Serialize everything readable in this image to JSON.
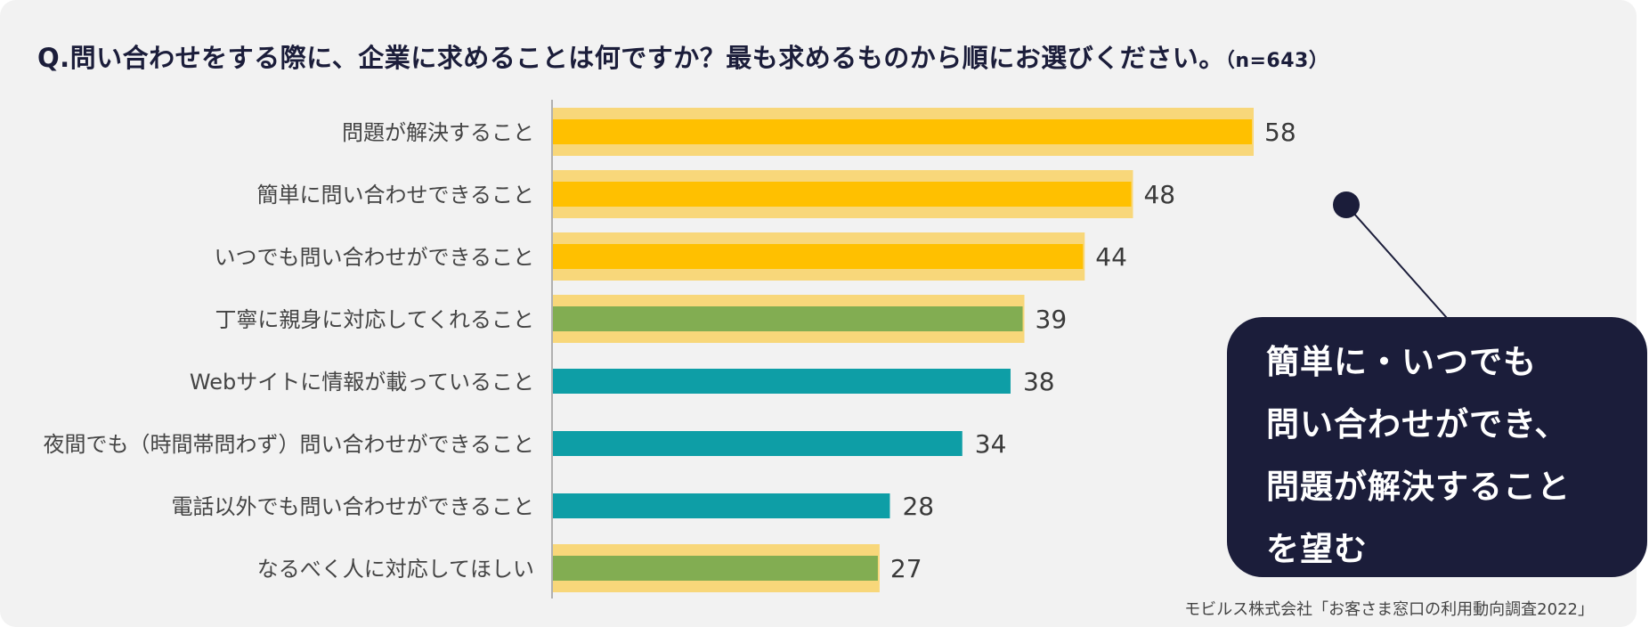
{
  "title": {
    "question": "Q.問い合わせをする際に、企業に求めることは何ですか？最も求めるものから順にお選びください。",
    "sample": "（n=643）"
  },
  "colors": {
    "yellow": "#ffc000",
    "yellow_band": "#f8d77a",
    "green": "#82ad52",
    "teal": "#0e9ea6",
    "navy": "#1b1d3a"
  },
  "chart_data": {
    "type": "bar",
    "orientation": "horizontal",
    "categories": [
      "問題が解決すること",
      "簡単に問い合わせできること",
      "いつでも問い合わせができること",
      "丁寧に親身に対応してくれること",
      "Webサイトに情報が載っていること",
      "夜間でも（時間帯問わず）問い合わせができること",
      "電話以外でも問い合わせができること",
      "なるべく人に対応してほしい"
    ],
    "values": [
      58,
      48,
      44,
      39,
      38,
      34,
      28,
      27
    ],
    "bar_colors": [
      "yellow",
      "yellow",
      "yellow",
      "green",
      "teal",
      "teal",
      "teal",
      "green"
    ],
    "highlighted": [
      true,
      true,
      true,
      true,
      false,
      false,
      false,
      true
    ],
    "xlim": [
      0,
      60
    ],
    "grid": false,
    "legend": "none",
    "xlabel": "",
    "ylabel": ""
  },
  "callout": {
    "text": "簡単に・いつでも\n問い合わせができ、\n問題が解決すること\nを望む"
  },
  "source": "モビルス株式会社「お客さま窓口の利用動向調査2022」"
}
